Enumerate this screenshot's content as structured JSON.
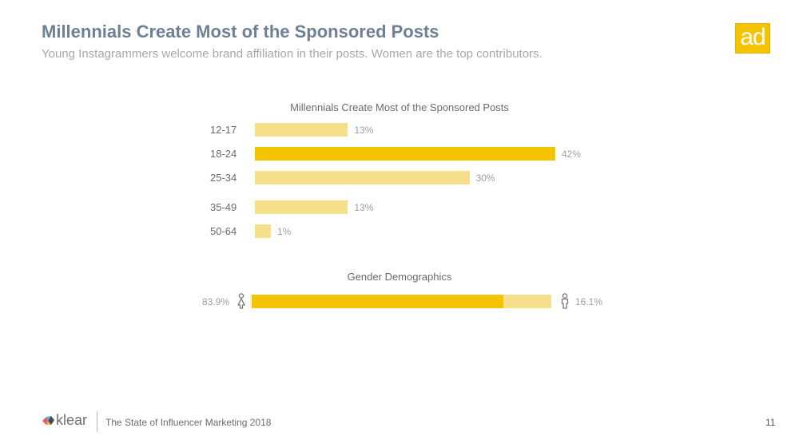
{
  "header": {
    "title": "Millennials Create Most of the Sponsored Posts",
    "subtitle": "Young Instagrammers welcome brand affiliation in their posts. Women are the top contributors."
  },
  "logo": {
    "text": "ad",
    "color": "#f5c400"
  },
  "chart_data": [
    {
      "type": "bar",
      "orientation": "horizontal",
      "title": "Millennials Create Most of the Sponsored Posts",
      "categories": [
        "12-17",
        "18-24",
        "25-34",
        "35-49",
        "50-64"
      ],
      "values": [
        13,
        42,
        30,
        13,
        1
      ],
      "value_labels": [
        "13%",
        "42%",
        "30%",
        "13%",
        "1%"
      ],
      "highlight": "18-24",
      "xlim": [
        0,
        42
      ],
      "colors": {
        "default": "#f6df8a",
        "highlight": "#f5c400"
      }
    },
    {
      "type": "bar",
      "orientation": "horizontal",
      "stacked": true,
      "title": "Gender Demographics",
      "series": [
        {
          "values": [
            83.9
          ],
          "label": "83.9%",
          "icon": "female-icon",
          "color": "#f5c400"
        },
        {
          "values": [
            16.1
          ],
          "label": "16.1%",
          "icon": "male-icon",
          "color": "#f6df8a"
        }
      ]
    }
  ],
  "footer": {
    "brand": "klear",
    "text": "The State of Influencer Marketing 2018",
    "page_number": "11"
  }
}
